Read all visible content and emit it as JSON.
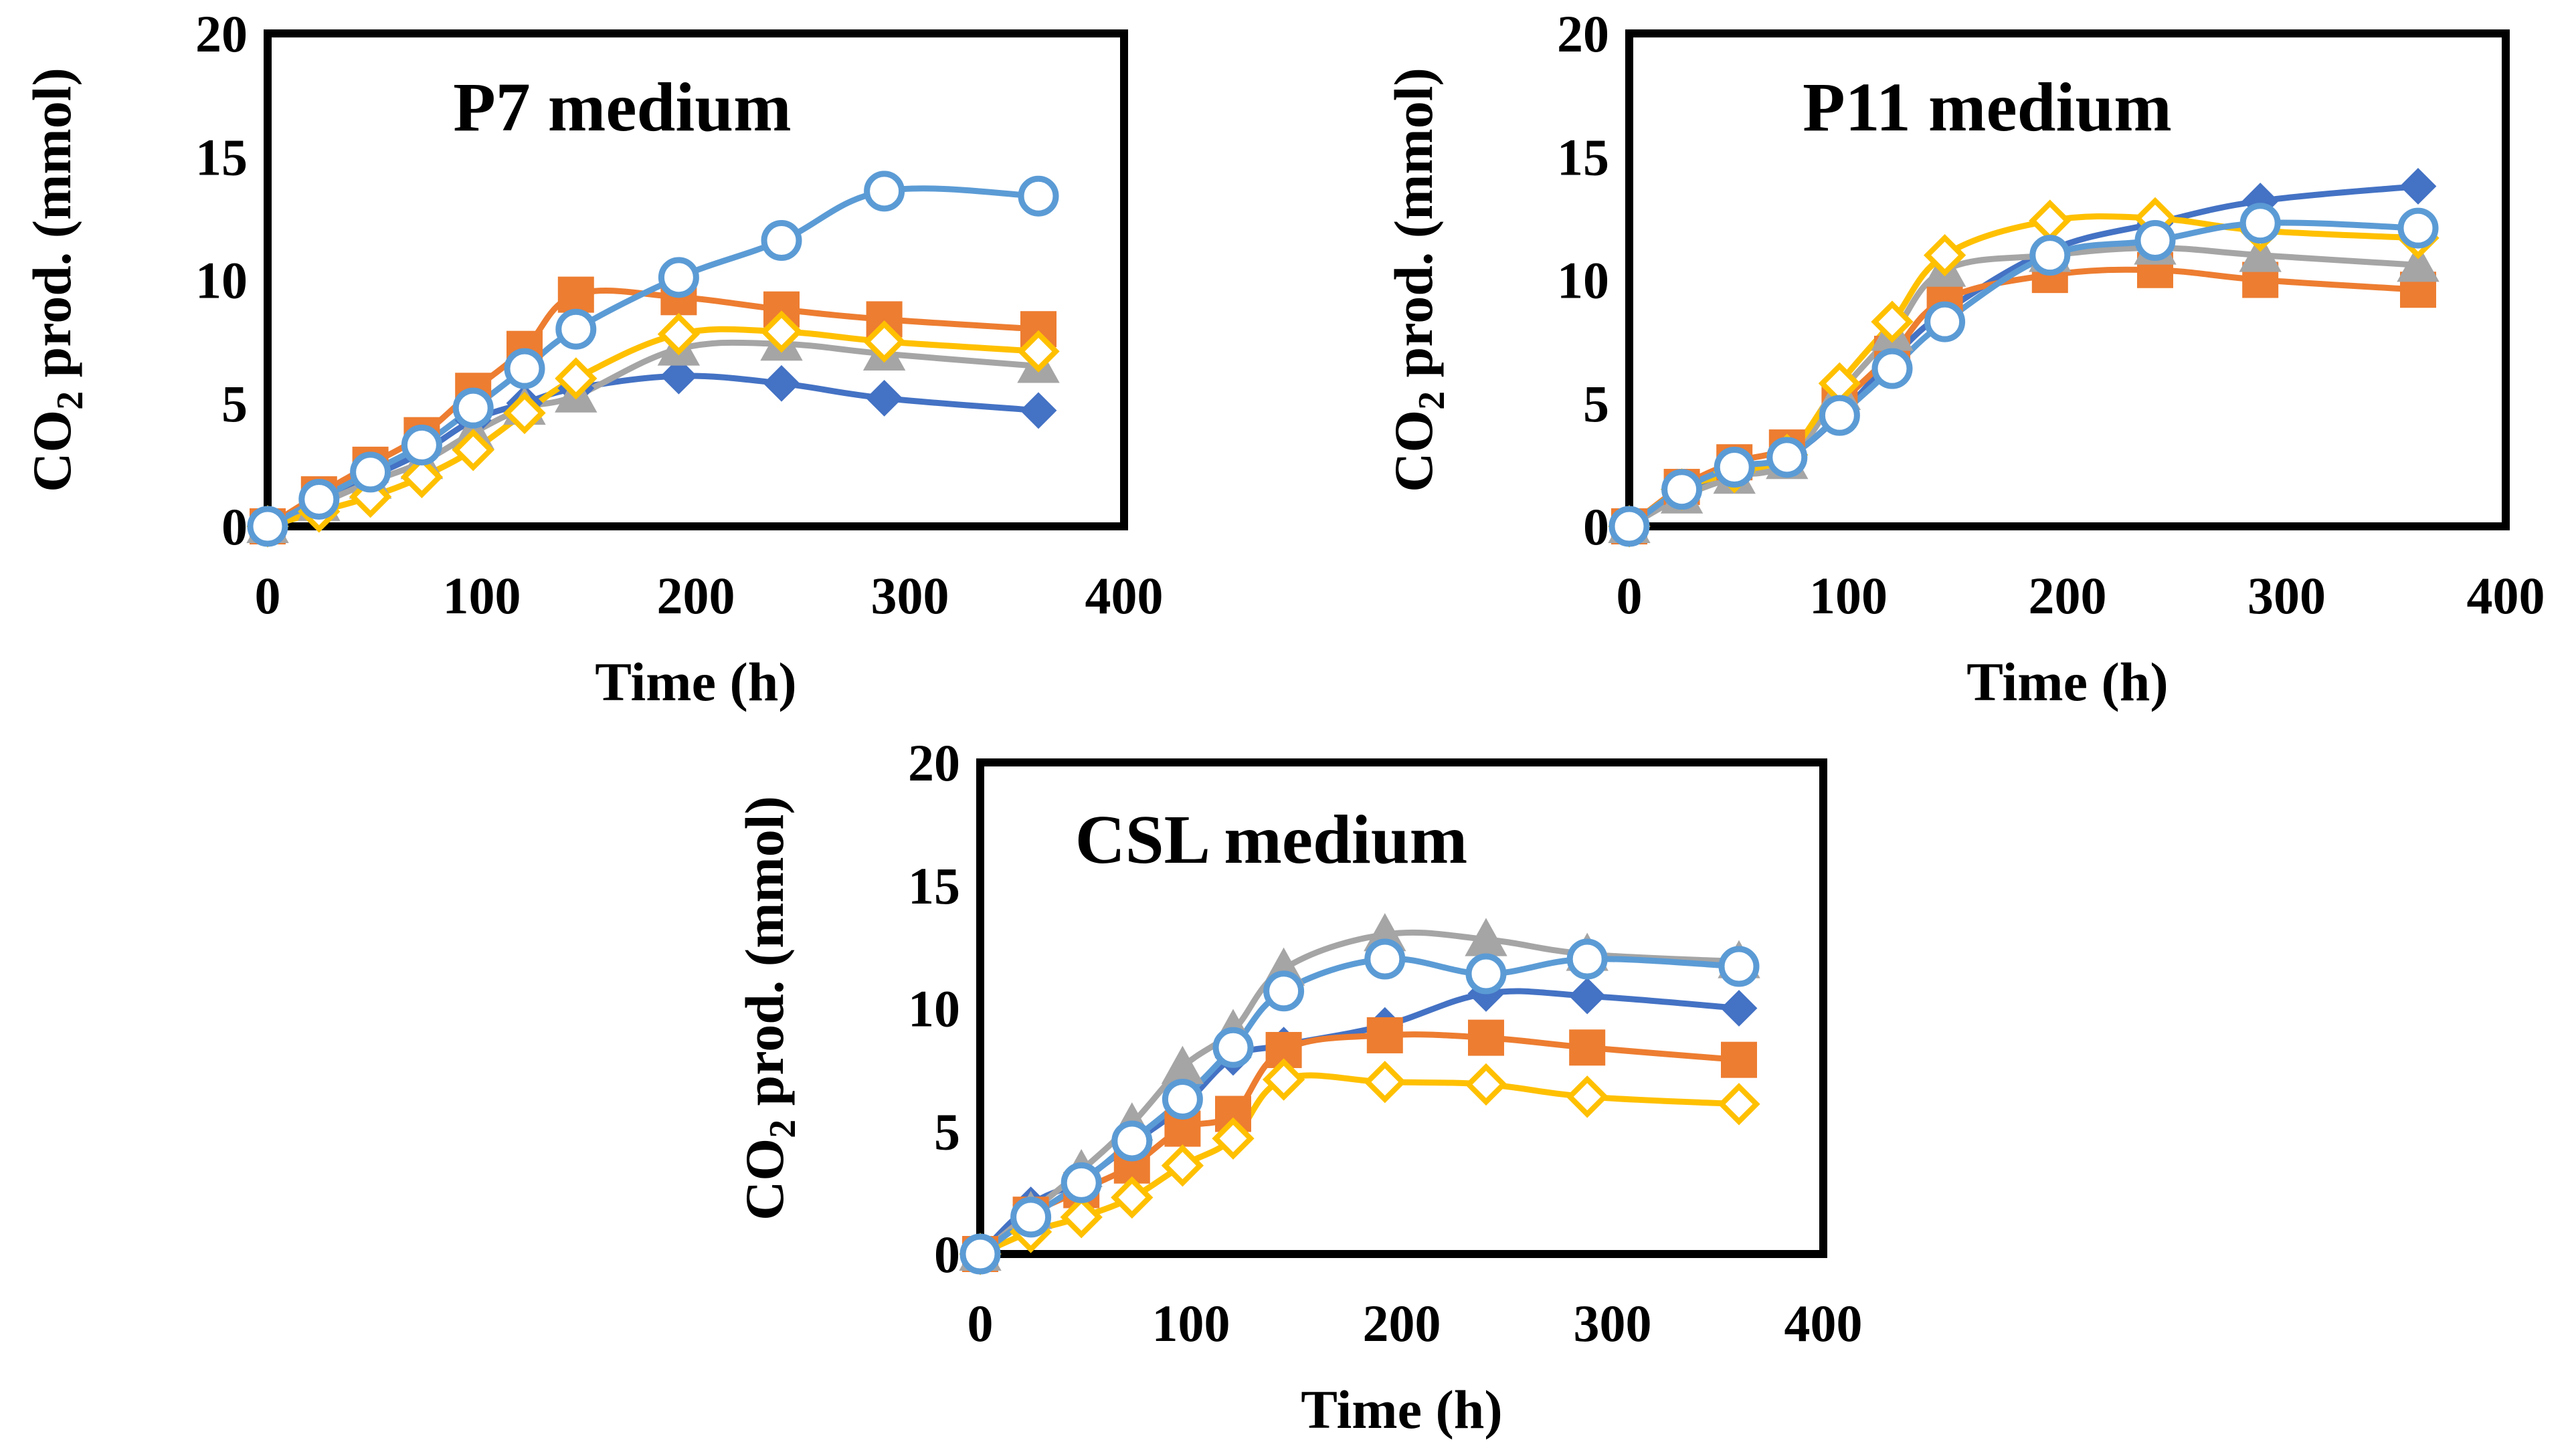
{
  "figure": {
    "description_free": true
  },
  "series_styles": [
    {
      "name": "series-1",
      "color": "#4472C4",
      "marker": "diamond-filled"
    },
    {
      "name": "series-2",
      "color": "#ED7D31",
      "marker": "square-filled"
    },
    {
      "name": "series-3",
      "color": "#A5A5A5",
      "marker": "triangle-filled"
    },
    {
      "name": "series-4",
      "color": "#FFC000",
      "marker": "diamond-open"
    },
    {
      "name": "series-5",
      "color": "#5B9BD5",
      "marker": "circle-open"
    }
  ],
  "chart_data": [
    {
      "type": "line",
      "title": "P7 medium",
      "xlabel": "Time (h)",
      "ylabel_main": "CO",
      "ylabel_sub": "2",
      "ylabel_rest": " prod. (mmol)",
      "xlim": [
        0,
        400
      ],
      "ylim": [
        0,
        20
      ],
      "xticks": [
        "0",
        "100",
        "200",
        "300",
        "400"
      ],
      "yticks": [
        "0",
        "5",
        "10",
        "15",
        "20"
      ],
      "x": [
        0,
        24,
        48,
        72,
        96,
        120,
        144,
        192,
        240,
        288,
        360
      ],
      "series": [
        {
          "name": "series-1",
          "values": [
            0,
            1.0,
            2.0,
            3.0,
            4.3,
            5.0,
            5.6,
            6.1,
            5.8,
            5.2,
            4.7
          ]
        },
        {
          "name": "series-2",
          "values": [
            0,
            1.3,
            2.5,
            3.7,
            5.5,
            7.2,
            9.4,
            9.3,
            8.8,
            8.4,
            8.0
          ]
        },
        {
          "name": "series-3",
          "values": [
            0,
            0.9,
            1.8,
            2.6,
            3.8,
            4.8,
            5.3,
            7.2,
            7.4,
            7.0,
            6.5
          ]
        },
        {
          "name": "series-4",
          "values": [
            0,
            0.6,
            1.2,
            2.0,
            3.1,
            4.6,
            6.0,
            7.8,
            7.9,
            7.5,
            7.1
          ]
        },
        {
          "name": "series-5",
          "values": [
            0,
            1.1,
            2.2,
            3.3,
            4.8,
            6.4,
            8.0,
            10.1,
            11.6,
            13.6,
            13.4
          ]
        }
      ]
    },
    {
      "type": "line",
      "title": "P11 medium",
      "xlabel": "Time (h)",
      "ylabel_main": "CO",
      "ylabel_sub": "2",
      "ylabel_rest": " prod. (mmol)",
      "xlim": [
        0,
        400
      ],
      "ylim": [
        0,
        20
      ],
      "xticks": [
        "0",
        "100",
        "200",
        "300",
        "400"
      ],
      "yticks": [
        "0",
        "5",
        "10",
        "15",
        "20"
      ],
      "x": [
        0,
        24,
        48,
        72,
        96,
        120,
        144,
        192,
        240,
        288,
        360
      ],
      "series": [
        {
          "name": "series-1",
          "values": [
            0,
            1.4,
            2.2,
            2.8,
            4.5,
            6.8,
            8.7,
            11.2,
            12.3,
            13.2,
            13.8
          ]
        },
        {
          "name": "series-2",
          "values": [
            0,
            1.6,
            2.6,
            3.2,
            5.0,
            7.0,
            9.2,
            10.2,
            10.4,
            10.0,
            9.6
          ]
        },
        {
          "name": "series-3",
          "values": [
            0,
            1.2,
            2.0,
            2.6,
            5.4,
            7.8,
            10.4,
            11.0,
            11.3,
            11.0,
            10.6
          ]
        },
        {
          "name": "series-4",
          "values": [
            0,
            1.5,
            2.2,
            2.9,
            5.8,
            8.3,
            11.0,
            12.4,
            12.5,
            12.0,
            11.7
          ]
        },
        {
          "name": "series-5",
          "values": [
            0,
            1.5,
            2.4,
            2.8,
            4.5,
            6.4,
            8.3,
            11.0,
            11.6,
            12.3,
            12.1
          ]
        }
      ]
    },
    {
      "type": "line",
      "title": "CSL medium",
      "xlabel": "Time (h)",
      "ylabel_main": "CO",
      "ylabel_sub": "2",
      "ylabel_rest": " prod. (mmol)",
      "xlim": [
        0,
        400
      ],
      "ylim": [
        0,
        20
      ],
      "xticks": [
        "0",
        "100",
        "200",
        "300",
        "400"
      ],
      "yticks": [
        "0",
        "5",
        "10",
        "15",
        "20"
      ],
      "x": [
        0,
        24,
        48,
        72,
        96,
        120,
        144,
        192,
        240,
        288,
        360
      ],
      "series": [
        {
          "name": "series-1",
          "values": [
            0,
            2.0,
            3.0,
            4.5,
            6.0,
            8.0,
            8.5,
            9.3,
            10.6,
            10.5,
            10.0
          ]
        },
        {
          "name": "series-2",
          "values": [
            0,
            1.6,
            2.6,
            3.6,
            5.1,
            5.7,
            8.3,
            8.9,
            8.8,
            8.4,
            7.9
          ]
        },
        {
          "name": "series-3",
          "values": [
            0,
            1.7,
            3.4,
            5.3,
            7.6,
            9.1,
            11.6,
            13.0,
            12.8,
            12.2,
            11.9
          ]
        },
        {
          "name": "series-4",
          "values": [
            0,
            0.9,
            1.5,
            2.3,
            3.6,
            4.7,
            7.1,
            7.0,
            6.9,
            6.4,
            6.1
          ]
        },
        {
          "name": "series-5",
          "values": [
            0,
            1.5,
            2.9,
            4.6,
            6.3,
            8.4,
            10.7,
            12.0,
            11.4,
            12.0,
            11.7
          ]
        }
      ]
    }
  ]
}
